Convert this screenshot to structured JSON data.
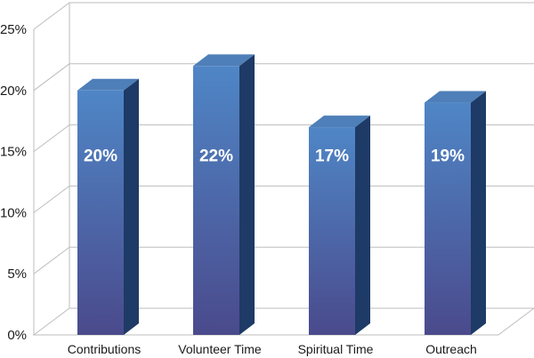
{
  "chart_data": {
    "type": "bar",
    "categories": [
      "Contributions",
      "Volunteer Time",
      "Spiritual Time",
      "Outreach"
    ],
    "values": [
      20,
      22,
      17,
      19
    ],
    "data_labels": [
      "20%",
      "22%",
      "17%",
      "19%"
    ],
    "title": "",
    "xlabel": "",
    "ylabel": "",
    "ylim": [
      0,
      25
    ],
    "yticks": [
      0,
      5,
      10,
      15,
      20,
      25
    ],
    "ytick_labels": [
      "0%",
      "5%",
      "10%",
      "15%",
      "20%",
      "25%"
    ],
    "grid": true,
    "legend": "none",
    "colors": {
      "bar_top_gradient": "#4f86c6",
      "bar_bottom_gradient": "#4a4a8c",
      "bar_side": "#1e3a66",
      "bar_cap": "#4e7fb8",
      "grid": "#bdbdbd"
    }
  }
}
